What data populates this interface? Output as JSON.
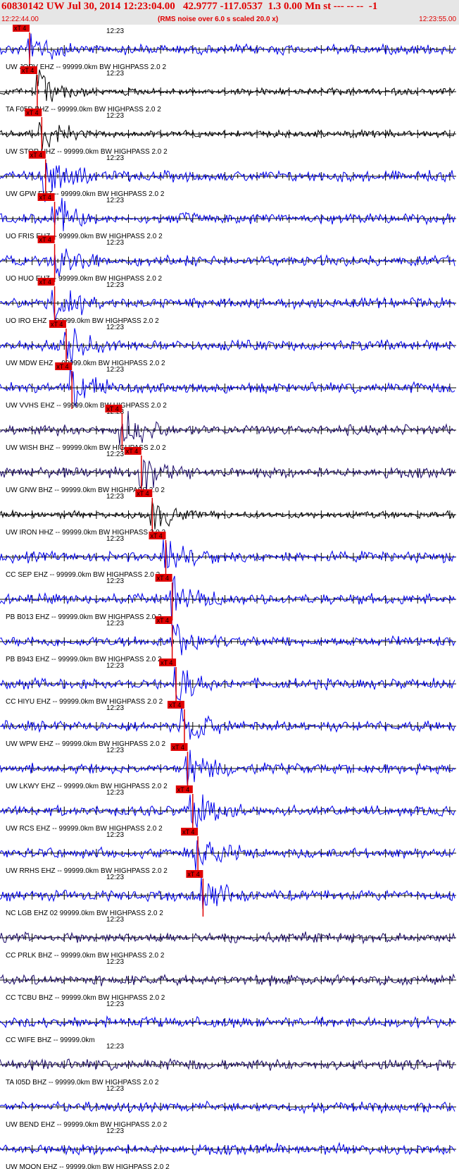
{
  "header": {
    "title": "60830142 UW Jul 30, 2014 12:23:04.00   42.9777 -117.0537  1.3 0.00 Mn st --- -- --  -1",
    "start_time": "12:22:44.00",
    "noise_note": "(RMS noise over 6.0 s scaled 20.0 x)",
    "end_time": "12:23:55.00"
  },
  "colors": {
    "trace_blue": "#0000ee",
    "trace_black": "#000000",
    "trace_navy": "#1c0a6a",
    "pick_red": "#e00000",
    "pick_flag_text": "#000000"
  },
  "chart_data": {
    "type": "line",
    "title": "60830142 UW Jul 30, 2014 12:23:04.00   42.9777 -117.0537  1.3 0.00 Mn st --- -- --  -1",
    "xlim": [
      "12:22:44.00",
      "12:23:55.00"
    ],
    "time_label": "12:23",
    "pick_flag_label": "xT 4",
    "grid": false,
    "channels": [
      {
        "label": "UW JORV EHZ -- 99999.0km BW  HIGHPASS  2.0  2",
        "color": "#0000ee",
        "pick_s": 4.6
      },
      {
        "label": "TA F05D BHZ -- 99999.0km BW  HIGHPASS  2.0  2",
        "color": "#000000",
        "pick_s": 5.8
      },
      {
        "label": "UW STOR HHZ -- 99999.0km BW  HIGHPASS  2.0  2",
        "color": "#000000",
        "pick_s": 6.5
      },
      {
        "label": "UW GPW EHZ -- 99999.0km BW  HIGHPASS  2.0  2",
        "color": "#0000ee",
        "pick_s": 7.1
      },
      {
        "label": "UO FRIS EHZ -- 99999.0km BW  HIGHPASS  2.0  2",
        "color": "#0000ee",
        "pick_s": 8.5
      },
      {
        "label": "UO HUO EHZ -- 99999.0km BW  HIGHPASS  2.0  2",
        "color": "#0000ee",
        "pick_s": 8.5
      },
      {
        "label": "UO IRO EHZ -- 99999.0km BW  HIGHPASS  2.0  2",
        "color": "#0000ee",
        "pick_s": 8.5
      },
      {
        "label": "UW MDW EHZ -- 99999.0km BW  HIGHPASS  2.0  2",
        "color": "#0000ee",
        "pick_s": 10.3
      },
      {
        "label": "UW VVHS EHZ -- 99999.0km BW  HIGHPASS  2.0  2",
        "color": "#0000ee",
        "pick_s": 11.2
      },
      {
        "label": "UW WISH BHZ -- 99999.0km BW  HIGHPASS  2.0  2",
        "color": "#1c0a6a",
        "pick_s": 19.0
      },
      {
        "label": "UW GNW BHZ -- 99999.0km BW  HIGHPASS  2.0  2",
        "color": "#1c0a6a",
        "pick_s": 22.0
      },
      {
        "label": "UW IRON HHZ -- 99999.0km BW  HIGHPASS  2.0  2",
        "color": "#000000",
        "pick_s": 23.7
      },
      {
        "label": "CC SEP EHZ -- 99999.0km BW  HIGHPASS  2.0  2",
        "color": "#0000ee",
        "pick_s": 25.8
      },
      {
        "label": "PB B013 EHZ -- 99999.0km BW  HIGHPASS  2.0  2",
        "color": "#0000ee",
        "pick_s": 26.8
      },
      {
        "label": "PB B943 EHZ -- 99999.0km BW  HIGHPASS  2.0  2",
        "color": "#0000ee",
        "pick_s": 26.8
      },
      {
        "label": "CC HIYU EHZ -- 99999.0km BW  HIGHPASS  2.0  2",
        "color": "#0000ee",
        "pick_s": 27.4
      },
      {
        "label": "UW WPW EHZ -- 99999.0km BW  HIGHPASS  2.0  2",
        "color": "#0000ee",
        "pick_s": 28.7
      },
      {
        "label": "UW LKWY EHZ -- 99999.0km BW  HIGHPASS  2.0  2",
        "color": "#0000ee",
        "pick_s": 29.2
      },
      {
        "label": "UW RCS EHZ -- 99999.0km BW  HIGHPASS  2.0  2",
        "color": "#0000ee",
        "pick_s": 30.0
      },
      {
        "label": "UW RRHS EHZ -- 99999.0km BW  HIGHPASS  2.0  2",
        "color": "#0000ee",
        "pick_s": 30.8
      },
      {
        "label": "NC LGB EHZ 02 99999.0km BW  HIGHPASS  2.0  2",
        "color": "#0000ee",
        "pick_s": 31.6
      },
      {
        "label": "CC PRLK BHZ -- 99999.0km BW  HIGHPASS  2.0  2",
        "color": "#1c0a6a",
        "pick_s": null
      },
      {
        "label": "CC TCBU BHZ -- 99999.0km BW  HIGHPASS  2.0  2",
        "color": "#1c0a6a",
        "pick_s": null
      },
      {
        "label": "CC WIFE BHZ -- 99999.0km",
        "color": "#0000ee",
        "pick_s": null
      },
      {
        "label": "TA I05D BHZ -- 99999.0km BW  HIGHPASS  2.0  2",
        "color": "#1c0a6a",
        "pick_s": null
      },
      {
        "label": "UW BEND EHZ -- 99999.0km BW  HIGHPASS  2.0  2",
        "color": "#0000ee",
        "pick_s": null
      },
      {
        "label": "UW MOON EHZ -- 99999.0km BW  HIGHPASS  2.0  2",
        "color": "#0000ee",
        "pick_s": null
      }
    ]
  }
}
